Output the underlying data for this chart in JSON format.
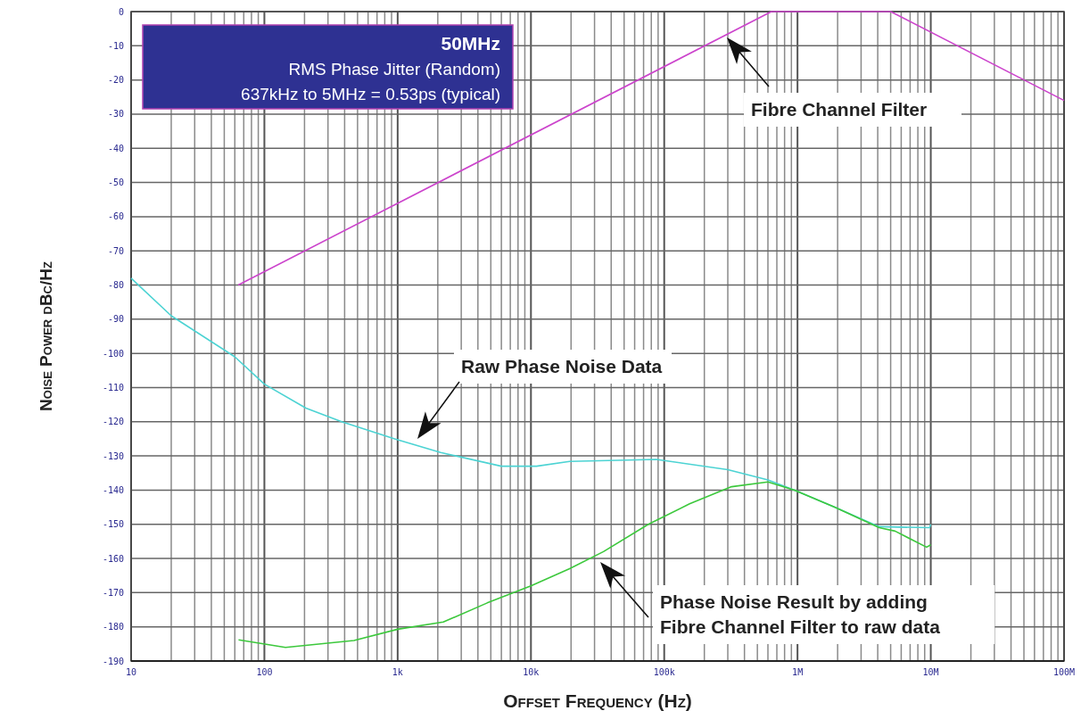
{
  "chart_data": {
    "type": "line",
    "xlabel": "Offset Frequency (Hz)",
    "ylabel": "Noise Power dBc/Hz",
    "log": "x",
    "grid": true,
    "legend": false,
    "marker": "none",
    "line_style": "solid",
    "xlim": [
      10,
      100000000
    ],
    "ylim": [
      -190,
      0
    ],
    "xticks": [
      {
        "value": 10,
        "label": "10"
      },
      {
        "value": 20,
        "label": null
      },
      {
        "value": 30,
        "label": null
      },
      {
        "value": 40,
        "label": null
      },
      {
        "value": 50,
        "label": null
      },
      {
        "value": 60,
        "label": null
      },
      {
        "value": 70,
        "label": null
      },
      {
        "value": 80,
        "label": null
      },
      {
        "value": 90,
        "label": null
      },
      {
        "value": 100,
        "label": "100"
      },
      {
        "value": 200,
        "label": null
      },
      {
        "value": 300,
        "label": null
      },
      {
        "value": 400,
        "label": null
      },
      {
        "value": 500,
        "label": null
      },
      {
        "value": 600,
        "label": null
      },
      {
        "value": 700,
        "label": null
      },
      {
        "value": 800,
        "label": null
      },
      {
        "value": 900,
        "label": null
      },
      {
        "value": 1000,
        "label": "1k"
      },
      {
        "value": 2000,
        "label": null
      },
      {
        "value": 3000,
        "label": null
      },
      {
        "value": 4000,
        "label": null
      },
      {
        "value": 5000,
        "label": null
      },
      {
        "value": 6000,
        "label": null
      },
      {
        "value": 7000,
        "label": null
      },
      {
        "value": 8000,
        "label": null
      },
      {
        "value": 9000,
        "label": null
      },
      {
        "value": 10000,
        "label": "10k"
      },
      {
        "value": 20000,
        "label": null
      },
      {
        "value": 30000,
        "label": null
      },
      {
        "value": 40000,
        "label": null
      },
      {
        "value": 50000,
        "label": null
      },
      {
        "value": 60000,
        "label": null
      },
      {
        "value": 70000,
        "label": null
      },
      {
        "value": 80000,
        "label": null
      },
      {
        "value": 90000,
        "label": null
      },
      {
        "value": 100000,
        "label": "100k"
      },
      {
        "value": 200000,
        "label": null
      },
      {
        "value": 300000,
        "label": null
      },
      {
        "value": 400000,
        "label": null
      },
      {
        "value": 500000,
        "label": null
      },
      {
        "value": 600000,
        "label": null
      },
      {
        "value": 700000,
        "label": null
      },
      {
        "value": 800000,
        "label": null
      },
      {
        "value": 900000,
        "label": null
      },
      {
        "value": 1000000,
        "label": "1M"
      },
      {
        "value": 2000000,
        "label": null
      },
      {
        "value": 3000000,
        "label": null
      },
      {
        "value": 4000000,
        "label": null
      },
      {
        "value": 5000000,
        "label": null
      },
      {
        "value": 6000000,
        "label": null
      },
      {
        "value": 7000000,
        "label": null
      },
      {
        "value": 8000000,
        "label": null
      },
      {
        "value": 9000000,
        "label": null
      },
      {
        "value": 10000000,
        "label": "10M"
      },
      {
        "value": 20000000,
        "label": null
      },
      {
        "value": 30000000,
        "label": null
      },
      {
        "value": 40000000,
        "label": null
      },
      {
        "value": 50000000,
        "label": null
      },
      {
        "value": 60000000,
        "label": null
      },
      {
        "value": 70000000,
        "label": null
      },
      {
        "value": 80000000,
        "label": null
      },
      {
        "value": 90000000,
        "label": null
      },
      {
        "value": 100000000,
        "label": "100M"
      }
    ],
    "yticks": [
      0,
      -10,
      -20,
      -30,
      -40,
      -50,
      -60,
      -70,
      -80,
      -90,
      -100,
      -110,
      -120,
      -130,
      -140,
      -150,
      -160,
      -170,
      -180,
      -190
    ],
    "series": [
      {
        "color": "#cc44cc",
        "x": [
          63.7,
          637000,
          5000000,
          100000000
        ],
        "values": [
          -80,
          0,
          0,
          -26
        ]
      },
      {
        "color": "#4cd3d3",
        "x": [
          10,
          20,
          60,
          100,
          205,
          380,
          950,
          2100,
          6000,
          11000,
          19500,
          87000,
          300000,
          600000,
          950000,
          1900000,
          4100000,
          9800000,
          10000000
        ],
        "values": [
          -78,
          -89,
          -101,
          -109,
          -116,
          -120,
          -125,
          -129,
          -133,
          -133,
          -131.6,
          -131,
          -134,
          -137,
          -140,
          -145,
          -150.7,
          -151,
          -150
        ]
      },
      {
        "color": "#3cc83c",
        "x": [
          64,
          144,
          470,
          1000,
          2200,
          4700,
          10000,
          19500,
          35000,
          76000,
          155000,
          320000,
          600000,
          950000,
          1900000,
          4100000,
          5400000,
          9300000,
          10000000
        ],
        "values": [
          -183.8,
          -186,
          -184,
          -180.7,
          -178.6,
          -173,
          -168,
          -163,
          -158,
          -150,
          -144,
          -139,
          -137.6,
          -140,
          -145,
          -151,
          -152,
          -156.7,
          -156
        ]
      }
    ],
    "annotations": [
      "50MHz",
      "RMS Phase Jitter (Random)",
      "637kHz to 5MHz = 0.53ps (typical)",
      "Fibre Channel Filter",
      "Raw Phase Noise Data",
      "Phase Noise Result by adding\nFibre Channel Filter to raw data"
    ]
  }
}
